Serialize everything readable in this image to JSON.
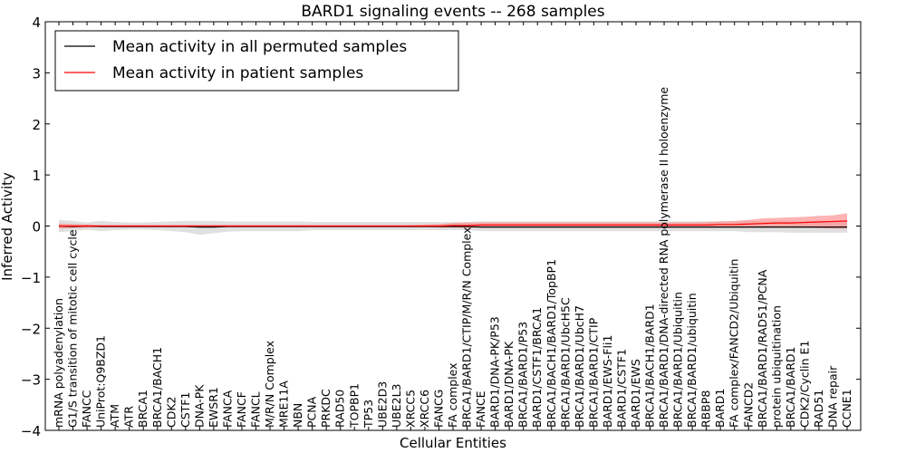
{
  "chart_data": {
    "type": "line",
    "title": "BARD1 signaling events -- 268 samples",
    "xlabel": "Cellular Entities",
    "ylabel": "Inferred Activity",
    "ylim": [
      -4,
      4
    ],
    "yticks": [
      -4,
      -3,
      -2,
      -1,
      0,
      1,
      2,
      3,
      4
    ],
    "legend_position": "top-left",
    "categories": [
      "mRNA polyadenylation",
      "G1/S transition of mitotic cell cycle",
      "FANCC",
      "UniProt:Q9BZD1",
      "ATM",
      "ATR",
      "BRCA1",
      "BRCA1/BACH1",
      "CDK2",
      "CSTF1",
      "DNA-PK",
      "EWSR1",
      "FANCA",
      "FANCF",
      "FANCL",
      "M/R/N Complex",
      "MRE11A",
      "NBN",
      "PCNA",
      "PRKDC",
      "RAD50",
      "TOPBP1",
      "TP53",
      "UBE2D3",
      "UBE2L3",
      "XRCC5",
      "XRCC6",
      "FANCG",
      "FA complex",
      "BRCA1/BARD1/CTIP/M/R/N Complex",
      "FANCE",
      "BARD1/DNA-PK/P53",
      "BARD1/DNA-PK",
      "BRCA1/BARD1/P53",
      "BARD1/CSTF1/BRCA1",
      "BRCA1/BACH1/BARD1/TopBP1",
      "BRCA1/BARD1/UbcH5C",
      "BRCA1/BARD1/UbcH7",
      "BRCA1/BARD1/CTIP",
      "BARD1/EWS-Fli1",
      "BARD1/CSTF1",
      "BARD1/EWS",
      "BRCA1/BACH1/BARD1",
      "BRCA1/BARD1/DNA-directed RNA polymerase II holoenzyme",
      "BRCA1/BARD1/Ubiquitin",
      "BRCA1/BARD1/ubiquitin",
      "RBBP8",
      "BARD1",
      "FA complex/FANCD2/Ubiquitin",
      "FANCD2",
      "BRCA1/BARD1/RAD51/PCNA",
      "protein ubiquitination",
      "BRCA1/BARD1",
      "CDK2/Cyclin E1",
      "RAD51",
      "DNA repair",
      "CCNE1"
    ],
    "series": [
      {
        "name": "Mean activity in all permuted samples",
        "color": "#000000",
        "values": [
          0.0,
          -0.01,
          0.0,
          -0.01,
          -0.01,
          -0.01,
          -0.01,
          -0.01,
          -0.01,
          -0.01,
          -0.02,
          -0.02,
          -0.01,
          -0.01,
          -0.01,
          -0.01,
          -0.01,
          -0.01,
          -0.01,
          -0.01,
          -0.01,
          -0.01,
          -0.01,
          -0.01,
          -0.01,
          -0.01,
          -0.01,
          -0.01,
          -0.01,
          -0.01,
          -0.02,
          -0.02,
          -0.02,
          -0.02,
          -0.02,
          -0.02,
          -0.02,
          -0.02,
          -0.02,
          -0.02,
          -0.02,
          -0.02,
          -0.02,
          -0.02,
          -0.02,
          -0.02,
          -0.02,
          -0.02,
          -0.02,
          -0.02,
          -0.02,
          -0.02,
          -0.02,
          -0.02,
          -0.02,
          -0.02,
          -0.02
        ],
        "band_low": [
          -0.12,
          -0.1,
          -0.07,
          -0.1,
          -0.08,
          -0.07,
          -0.07,
          -0.08,
          -0.1,
          -0.12,
          -0.17,
          -0.14,
          -0.11,
          -0.1,
          -0.1,
          -0.1,
          -0.1,
          -0.1,
          -0.08,
          -0.08,
          -0.08,
          -0.08,
          -0.08,
          -0.08,
          -0.08,
          -0.08,
          -0.08,
          -0.08,
          -0.08,
          -0.08,
          -0.1,
          -0.1,
          -0.1,
          -0.1,
          -0.1,
          -0.1,
          -0.1,
          -0.1,
          -0.1,
          -0.1,
          -0.1,
          -0.1,
          -0.1,
          -0.1,
          -0.1,
          -0.1,
          -0.1,
          -0.1,
          -0.1,
          -0.12,
          -0.12,
          -0.12,
          -0.13,
          -0.13,
          -0.13,
          -0.13,
          -0.13
        ],
        "band_high": [
          0.12,
          0.1,
          0.07,
          0.1,
          0.08,
          0.07,
          0.07,
          0.08,
          0.09,
          0.1,
          0.1,
          0.1,
          0.09,
          0.09,
          0.09,
          0.09,
          0.09,
          0.09,
          0.08,
          0.08,
          0.08,
          0.08,
          0.08,
          0.08,
          0.08,
          0.08,
          0.08,
          0.08,
          0.08,
          0.08,
          0.09,
          0.09,
          0.09,
          0.09,
          0.09,
          0.09,
          0.09,
          0.09,
          0.09,
          0.09,
          0.09,
          0.09,
          0.09,
          0.09,
          0.09,
          0.09,
          0.09,
          0.09,
          0.09,
          0.1,
          0.1,
          0.1,
          0.1,
          0.1,
          0.1,
          0.1,
          0.1
        ]
      },
      {
        "name": "Mean activity in patient samples",
        "color": "#ff0000",
        "values": [
          0.0,
          0.0,
          0.0,
          0.0,
          0.0,
          0.0,
          0.0,
          0.0,
          0.0,
          0.0,
          0.0,
          0.0,
          0.0,
          0.0,
          0.0,
          0.0,
          0.0,
          0.0,
          0.0,
          0.0,
          0.0,
          0.0,
          0.0,
          0.0,
          0.0,
          0.0,
          0.0,
          0.0,
          0.01,
          0.01,
          0.02,
          0.02,
          0.02,
          0.02,
          0.02,
          0.02,
          0.02,
          0.02,
          0.02,
          0.02,
          0.02,
          0.02,
          0.02,
          0.02,
          0.02,
          0.02,
          0.02,
          0.03,
          0.03,
          0.04,
          0.05,
          0.06,
          0.06,
          0.07,
          0.08,
          0.09,
          0.1
        ],
        "band_low": [
          -0.05,
          -0.04,
          -0.03,
          -0.02,
          -0.02,
          -0.02,
          -0.02,
          -0.02,
          -0.02,
          -0.02,
          -0.02,
          -0.02,
          -0.02,
          -0.02,
          -0.02,
          -0.02,
          -0.02,
          -0.02,
          -0.02,
          -0.02,
          -0.02,
          -0.02,
          -0.02,
          -0.02,
          -0.02,
          -0.02,
          -0.02,
          -0.03,
          -0.03,
          -0.04,
          -0.03,
          -0.03,
          -0.03,
          -0.03,
          -0.03,
          -0.03,
          -0.03,
          -0.03,
          -0.03,
          -0.03,
          -0.03,
          -0.03,
          -0.03,
          -0.03,
          -0.03,
          -0.03,
          -0.03,
          -0.03,
          -0.03,
          -0.03,
          -0.03,
          -0.03,
          -0.03,
          -0.03,
          -0.04,
          -0.05,
          -0.05
        ],
        "band_high": [
          0.05,
          0.04,
          0.03,
          0.02,
          0.02,
          0.02,
          0.02,
          0.02,
          0.02,
          0.02,
          0.02,
          0.02,
          0.02,
          0.02,
          0.02,
          0.02,
          0.02,
          0.02,
          0.02,
          0.02,
          0.02,
          0.02,
          0.02,
          0.02,
          0.02,
          0.02,
          0.03,
          0.04,
          0.06,
          0.07,
          0.07,
          0.07,
          0.07,
          0.07,
          0.07,
          0.07,
          0.07,
          0.07,
          0.07,
          0.07,
          0.07,
          0.07,
          0.07,
          0.07,
          0.07,
          0.07,
          0.08,
          0.09,
          0.1,
          0.12,
          0.15,
          0.16,
          0.17,
          0.18,
          0.2,
          0.21,
          0.25
        ]
      }
    ]
  },
  "colors": {
    "permuted_band": "#cccccc",
    "patient_band": "#ff8080"
  }
}
